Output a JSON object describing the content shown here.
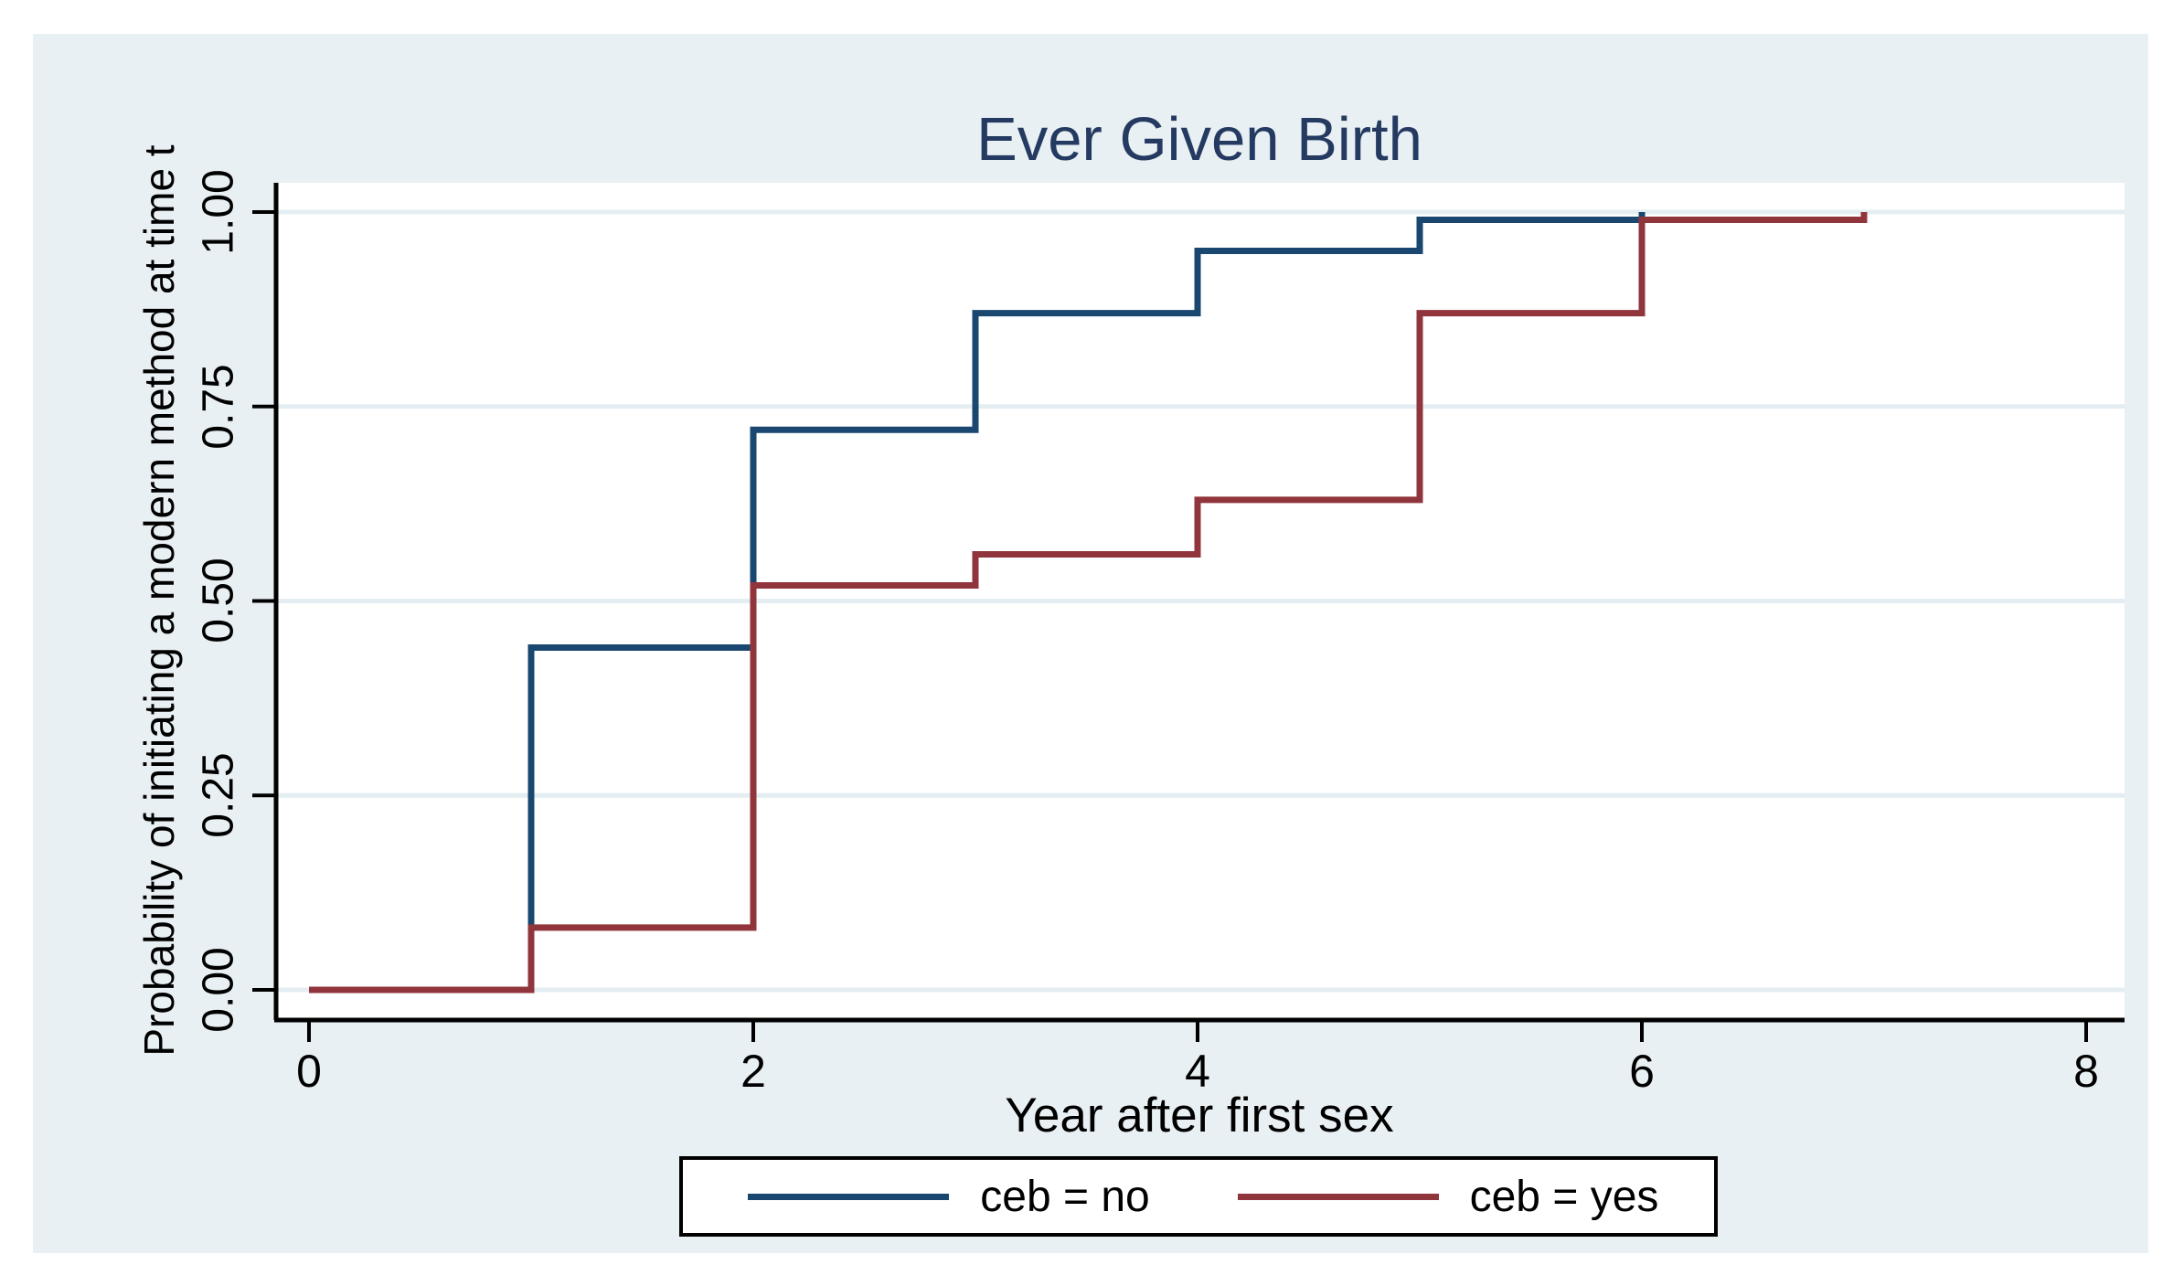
{
  "figure": {
    "background_color": "#e9f0f3",
    "plot_background_color": "#ffffff",
    "gridline_color": "#e4edf1",
    "axis_color": "#000000"
  },
  "chart_data": {
    "type": "step",
    "title": "Ever Given Birth",
    "title_color": "#243a61",
    "xlabel": "Year after first sex",
    "ylabel": "Probability of initiating a modern method at time t",
    "xlim": [
      0,
      8
    ],
    "ylim": [
      0.0,
      1.0
    ],
    "grid": true,
    "x_ticks": [
      "0",
      "2",
      "4",
      "6",
      "8"
    ],
    "x_tick_values": [
      0,
      2,
      4,
      6,
      8
    ],
    "y_ticks": [
      "0.00",
      "0.25",
      "0.50",
      "0.75",
      "1.00"
    ],
    "y_tick_values": [
      0,
      0.25,
      0.5,
      0.75,
      1.0
    ],
    "legend_position": "bottom-center",
    "series": [
      {
        "name": "ceb = no",
        "color": "#1a476f",
        "step_x": [
          0,
          1,
          2,
          3,
          4,
          5,
          6
        ],
        "step_y": [
          0,
          0.44,
          0.72,
          0.87,
          0.95,
          0.99,
          1.0
        ]
      },
      {
        "name": "ceb = yes",
        "color": "#90353b",
        "step_x": [
          0,
          1,
          2,
          3,
          4,
          5,
          6,
          7
        ],
        "step_y": [
          0,
          0.08,
          0.52,
          0.56,
          0.63,
          0.87,
          0.99,
          1.0
        ]
      }
    ]
  },
  "legend": {
    "items": [
      {
        "label": "ceb = no",
        "color": "#1a476f"
      },
      {
        "label": "ceb = yes",
        "color": "#90353b"
      }
    ]
  }
}
